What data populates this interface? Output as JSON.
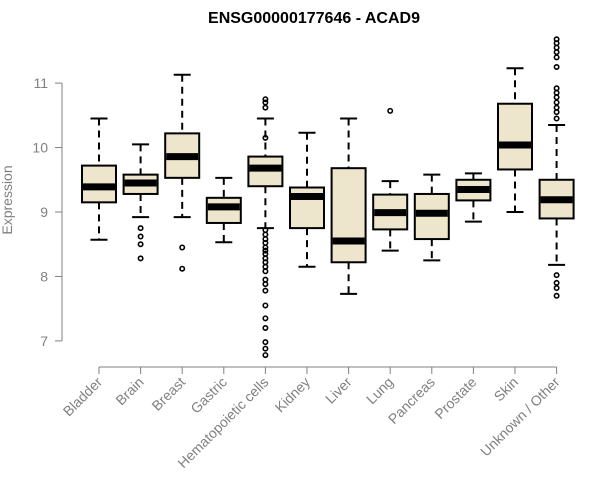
{
  "chart_data": {
    "type": "boxplot",
    "title": "ENSG00000177646 - ACAD9",
    "xlabel": "",
    "ylabel": "Expression",
    "ylim": [
      6.75,
      11.7
    ],
    "yticks": [
      7,
      8,
      9,
      10,
      11
    ],
    "box_color": "#ede6cc",
    "line_color": "#000000",
    "axis_color": "#808080",
    "categories": [
      "Bladder",
      "Brain",
      "Breast",
      "Gastric",
      "Hematopoietic cells",
      "Kidney",
      "Liver",
      "Lung",
      "Pancreas",
      "Prostate",
      "Skin",
      "Unknown / Other"
    ],
    "boxes": [
      {
        "label": "Bladder",
        "min": 8.57,
        "q1": 9.15,
        "median": 9.39,
        "q3": 9.72,
        "max": 10.45,
        "outliers": []
      },
      {
        "label": "Brain",
        "min": 8.92,
        "q1": 9.28,
        "median": 9.45,
        "q3": 9.58,
        "max": 10.05,
        "outliers": [
          8.75,
          8.62,
          8.5,
          8.28
        ]
      },
      {
        "label": "Breast",
        "min": 8.92,
        "q1": 9.53,
        "median": 9.86,
        "q3": 10.22,
        "max": 11.13,
        "outliers": [
          8.45,
          8.12
        ]
      },
      {
        "label": "Gastric",
        "min": 8.53,
        "q1": 8.83,
        "median": 9.08,
        "q3": 9.22,
        "max": 9.53,
        "outliers": []
      },
      {
        "label": "Hematopoietic cells",
        "min": 8.75,
        "q1": 9.4,
        "median": 9.68,
        "q3": 9.86,
        "max": 10.45,
        "outliers": [
          10.75,
          10.7,
          10.62,
          10.15,
          8.72,
          8.65,
          8.58,
          8.52,
          8.45,
          8.4,
          8.35,
          8.28,
          8.22,
          8.15,
          8.08,
          7.95,
          7.88,
          7.78,
          7.55,
          7.35,
          7.2,
          6.98,
          6.88,
          6.78
        ]
      },
      {
        "label": "Kidney",
        "min": 8.15,
        "q1": 8.75,
        "median": 9.24,
        "q3": 9.38,
        "max": 10.23,
        "outliers": []
      },
      {
        "label": "Liver",
        "min": 7.73,
        "q1": 8.22,
        "median": 8.55,
        "q3": 9.68,
        "max": 10.45,
        "outliers": []
      },
      {
        "label": "Lung",
        "min": 8.4,
        "q1": 8.73,
        "median": 8.99,
        "q3": 9.27,
        "max": 9.48,
        "outliers": [
          10.57
        ]
      },
      {
        "label": "Pancreas",
        "min": 8.25,
        "q1": 8.58,
        "median": 8.98,
        "q3": 9.28,
        "max": 9.58,
        "outliers": []
      },
      {
        "label": "Prostate",
        "min": 8.85,
        "q1": 9.18,
        "median": 9.35,
        "q3": 9.5,
        "max": 9.6,
        "outliers": []
      },
      {
        "label": "Skin",
        "min": 9.0,
        "q1": 9.66,
        "median": 10.04,
        "q3": 10.68,
        "max": 11.23,
        "outliers": []
      },
      {
        "label": "Unknown / Other",
        "min": 8.18,
        "q1": 8.9,
        "median": 9.19,
        "q3": 9.5,
        "max": 10.35,
        "outliers": [
          11.68,
          11.62,
          11.55,
          11.48,
          11.4,
          11.25,
          10.92,
          10.85,
          10.78,
          10.7,
          10.62,
          10.55,
          10.45,
          8.02,
          7.9,
          7.82,
          7.7
        ]
      }
    ]
  }
}
